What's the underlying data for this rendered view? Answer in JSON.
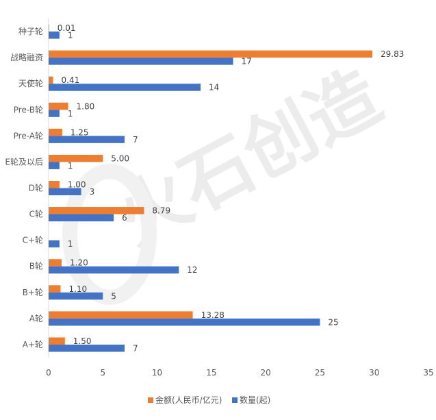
{
  "chart_data": {
    "type": "bar",
    "orientation": "horizontal",
    "categories": [
      "种子轮",
      "战略融资",
      "天使轮",
      "Pre-B轮",
      "Pre-A轮",
      "E轮及以后",
      "D轮",
      "C轮",
      "C+轮",
      "B轮",
      "B+轮",
      "A轮",
      "A+轮"
    ],
    "series": [
      {
        "name": "金额(人民币/亿元)",
        "color": "#ED7D31",
        "values": [
          0.01,
          29.83,
          0.41,
          1.8,
          1.25,
          5.0,
          1.0,
          8.79,
          null,
          1.2,
          1.1,
          13.28,
          1.5
        ],
        "labels": [
          "0.01",
          "29.83",
          "0.41",
          "1.80",
          "1.25",
          "5.00",
          "1.00",
          "8.79",
          "",
          "1.20",
          "1.10",
          "13.28",
          "1.50"
        ]
      },
      {
        "name": "数量(起)",
        "color": "#4472C4",
        "values": [
          1,
          17,
          14,
          1,
          7,
          1,
          3,
          6,
          1,
          12,
          5,
          25,
          7
        ],
        "labels": [
          "1",
          "17",
          "14",
          "1",
          "7",
          "1",
          "3",
          "6",
          "1",
          "12",
          "5",
          "25",
          "7"
        ]
      }
    ],
    "xlim": [
      0,
      35
    ],
    "xticks": [
      "0",
      "5",
      "10",
      "15",
      "20",
      "25",
      "30",
      "35"
    ],
    "grid": false,
    "legend_position": "bottom",
    "watermark": "火石创造"
  }
}
